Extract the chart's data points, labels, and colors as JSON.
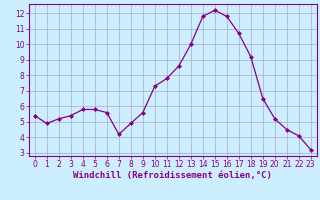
{
  "x": [
    0,
    1,
    2,
    3,
    4,
    5,
    6,
    7,
    8,
    9,
    10,
    11,
    12,
    13,
    14,
    15,
    16,
    17,
    18,
    19,
    20,
    21,
    22,
    23
  ],
  "y": [
    5.4,
    4.9,
    5.2,
    5.4,
    5.8,
    5.8,
    5.6,
    4.2,
    4.9,
    5.6,
    7.3,
    7.8,
    8.6,
    10.0,
    11.8,
    12.2,
    11.8,
    10.7,
    9.2,
    6.5,
    5.2,
    4.5,
    4.1,
    3.2
  ],
  "line_color": "#880088",
  "marker": "D",
  "marker_size": 2.0,
  "bg_color": "#cceeff",
  "grid_color": "#aaaacc",
  "xlabel": "Windchill (Refroidissement éolien,°C)",
  "xlabel_color": "#880088",
  "xlabel_fontsize": 6.5,
  "ylim": [
    2.8,
    12.6
  ],
  "xlim": [
    -0.5,
    23.5
  ],
  "yticks": [
    3,
    4,
    5,
    6,
    7,
    8,
    9,
    10,
    11,
    12
  ],
  "xticks": [
    0,
    1,
    2,
    3,
    4,
    5,
    6,
    7,
    8,
    9,
    10,
    11,
    12,
    13,
    14,
    15,
    16,
    17,
    18,
    19,
    20,
    21,
    22,
    23
  ],
  "tick_fontsize": 5.5,
  "tick_color": "#880088",
  "spine_color": "#880088",
  "linewidth": 0.9
}
